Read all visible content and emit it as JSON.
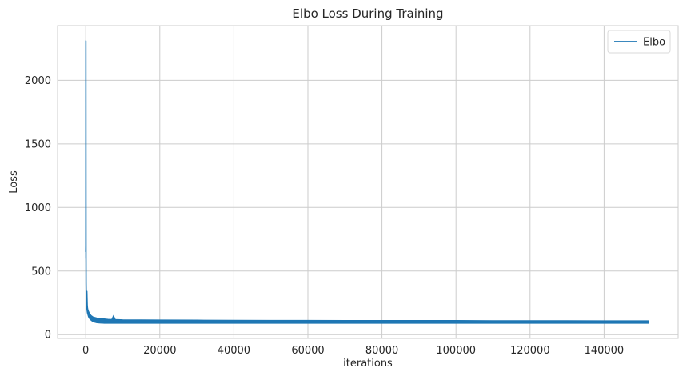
{
  "chart_data": {
    "type": "line",
    "title": "Elbo Loss During Training",
    "xlabel": "iterations",
    "ylabel": "Loss",
    "xlim": [
      -7600,
      160000
    ],
    "ylim": [
      -30,
      2430
    ],
    "xticks": [
      0,
      20000,
      40000,
      60000,
      80000,
      100000,
      120000,
      140000
    ],
    "yticks": [
      0,
      500,
      1000,
      1500,
      2000
    ],
    "grid": true,
    "legend_position": "top-right",
    "series": [
      {
        "name": "Elbo",
        "color": "#1f77b4",
        "x": [
          0,
          20,
          40,
          60,
          80,
          100,
          150,
          200,
          300,
          400,
          500,
          700,
          1000,
          1500,
          2000,
          3000,
          4000,
          5000,
          6000,
          7000,
          7500,
          8000,
          10000,
          15000,
          20000,
          30000,
          40000,
          50000,
          60000,
          70000,
          80000,
          90000,
          100000,
          110000,
          120000,
          130000,
          140000,
          150000,
          152000
        ],
        "y": [
          650,
          700,
          2310,
          1200,
          600,
          400,
          300,
          280,
          340,
          230,
          200,
          180,
          160,
          140,
          130,
          120,
          118,
          115,
          112,
          110,
          145,
          110,
          108,
          106,
          105,
          104,
          103,
          103,
          102,
          102,
          101,
          101,
          100,
          100,
          100,
          99,
          99,
          99,
          99
        ],
        "band_low": [
          600,
          600,
          600,
          500,
          450,
          330,
          250,
          220,
          190,
          170,
          160,
          140,
          125,
          110,
          100,
          92,
          90,
          88,
          88,
          88,
          88,
          88,
          88,
          88,
          88,
          88,
          88,
          88,
          88,
          88,
          88,
          88,
          88,
          88,
          88,
          88,
          88,
          88,
          88
        ],
        "band_high": [
          700,
          700,
          2310,
          1200,
          650,
          420,
          340,
          300,
          340,
          240,
          210,
          190,
          170,
          150,
          140,
          132,
          128,
          125,
          122,
          120,
          150,
          120,
          118,
          117,
          116,
          115,
          114,
          113,
          113,
          112,
          112,
          112,
          112,
          111,
          111,
          111,
          110,
          110,
          110
        ]
      }
    ]
  }
}
